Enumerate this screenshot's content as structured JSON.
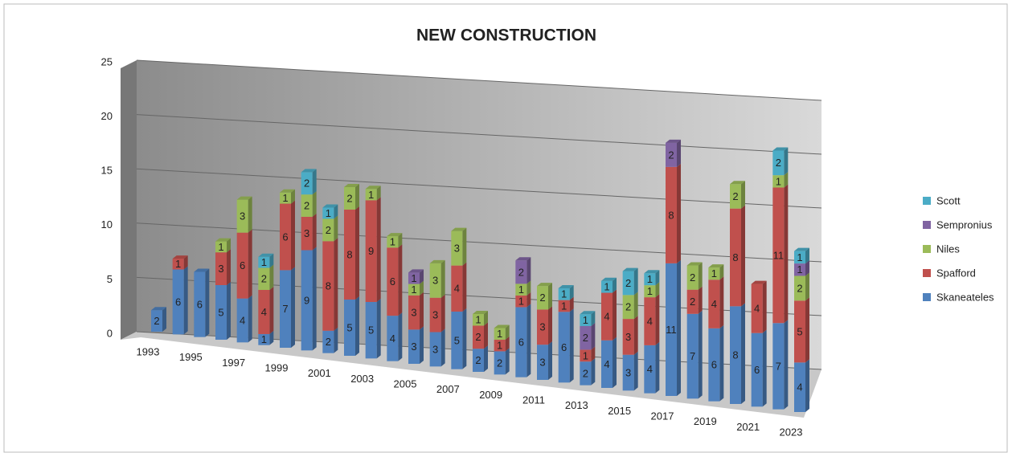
{
  "chart_data": {
    "type": "bar3d",
    "stacked": true,
    "title": "NEW CONSTRUCTION",
    "categories": [
      "1993",
      null,
      "1995",
      null,
      "1997",
      null,
      "1999",
      null,
      "2001",
      null,
      "2003",
      null,
      "2005",
      null,
      "2007",
      null,
      "2009",
      null,
      "2011",
      null,
      "2013",
      null,
      "2015",
      null,
      "2017",
      null,
      "2019",
      null,
      "2021",
      null,
      "2023"
    ],
    "series": [
      {
        "name": "Skaneateles",
        "color": "#4f81bd",
        "values": [
          2,
          6,
          6,
          5,
          4,
          1,
          7,
          9,
          2,
          5,
          5,
          4,
          3,
          3,
          5,
          2,
          2,
          6,
          3,
          6,
          2,
          4,
          3,
          4,
          11,
          7,
          6,
          8,
          6,
          7,
          4
        ]
      },
      {
        "name": "Spafford",
        "color": "#c0504d",
        "values": [
          null,
          1,
          null,
          3,
          6,
          4,
          6,
          3,
          8,
          8,
          9,
          6,
          3,
          3,
          4,
          2,
          1,
          1,
          3,
          1,
          1,
          4,
          3,
          4,
          8,
          2,
          4,
          8,
          4,
          11,
          5
        ]
      },
      {
        "name": "Niles",
        "color": "#9bbb59",
        "values": [
          null,
          null,
          null,
          1,
          3,
          2,
          1,
          2,
          2,
          2,
          1,
          1,
          1,
          3,
          3,
          1,
          1,
          1,
          2,
          null,
          null,
          null,
          2,
          1,
          null,
          2,
          1,
          2,
          null,
          1,
          2
        ]
      },
      {
        "name": "Sempronius",
        "color": "#8064a2",
        "values": [
          null,
          null,
          null,
          null,
          null,
          null,
          null,
          null,
          null,
          null,
          null,
          null,
          1,
          null,
          null,
          null,
          null,
          2,
          null,
          null,
          2,
          null,
          null,
          null,
          2,
          null,
          null,
          null,
          null,
          null,
          1
        ]
      },
      {
        "name": "Scott",
        "color": "#4bacc6",
        "values": [
          null,
          null,
          null,
          null,
          null,
          1,
          null,
          2,
          1,
          null,
          null,
          null,
          null,
          null,
          null,
          null,
          null,
          null,
          null,
          1,
          1,
          1,
          2,
          1,
          null,
          null,
          null,
          null,
          null,
          2,
          1
        ]
      }
    ],
    "ylim": [
      0,
      25
    ],
    "yticks": [
      0,
      5,
      10,
      15,
      20,
      25
    ],
    "grid": true,
    "legend": "right"
  }
}
